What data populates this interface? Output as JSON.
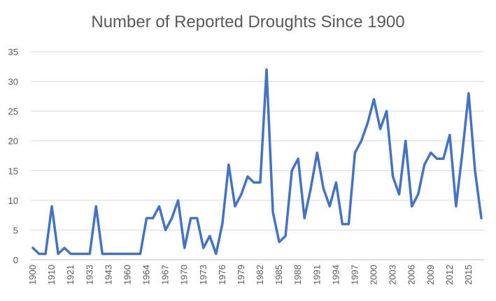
{
  "chart_data": {
    "type": "line",
    "title": "Number of Reported Droughts Since 1900",
    "xlabel": "",
    "ylabel": "",
    "ylim": [
      0,
      35
    ],
    "yticks": [
      0,
      5,
      10,
      15,
      20,
      25,
      30,
      35
    ],
    "grid": true,
    "legend": "none",
    "x_tick_labels": [
      "1900",
      "1910",
      "1921",
      "1933",
      "1943",
      "1960",
      "1964",
      "1967",
      "1970",
      "1973",
      "1976",
      "1979",
      "1982",
      "1985",
      "1988",
      "1991",
      "1994",
      "1997",
      "2000",
      "2003",
      "2006",
      "2009",
      "2012",
      "2015"
    ],
    "series": [
      {
        "color": "#4472c4",
        "values": [
          2,
          1,
          1,
          9,
          1,
          2,
          1,
          1,
          1,
          1,
          9,
          1,
          1,
          1,
          1,
          1,
          1,
          1,
          7,
          7,
          9,
          5,
          7,
          10,
          2,
          7,
          7,
          2,
          4,
          1,
          6,
          16,
          9,
          11,
          14,
          13,
          13,
          32,
          8,
          3,
          4,
          15,
          17,
          7,
          12,
          18,
          12,
          9,
          13,
          6,
          6,
          18,
          20,
          23,
          27,
          22,
          25,
          14,
          11,
          20,
          9,
          11,
          16,
          18,
          17,
          17,
          21,
          9,
          18,
          28,
          15,
          7
        ]
      }
    ]
  }
}
